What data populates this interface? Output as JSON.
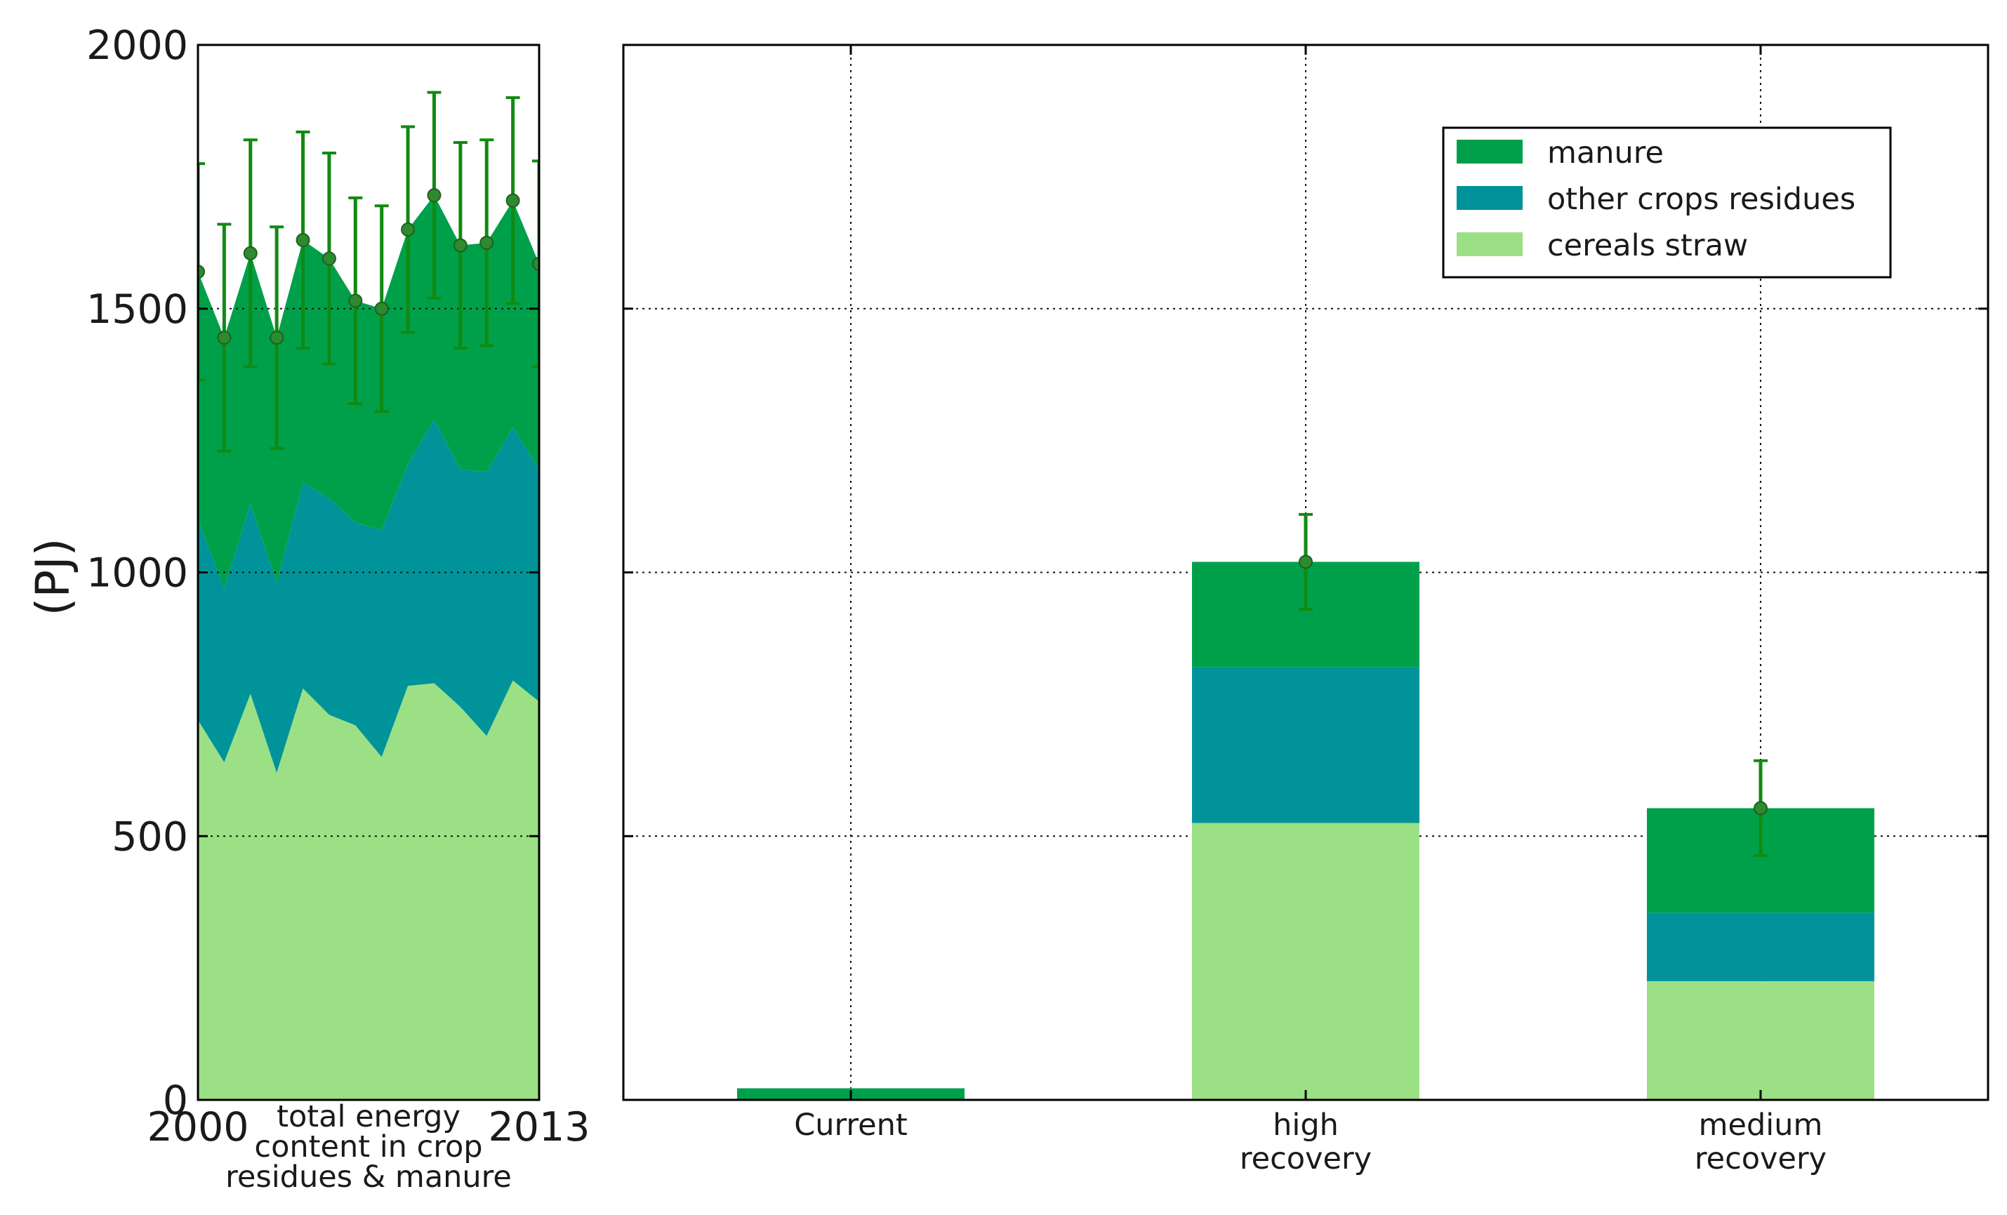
{
  "colors": {
    "manure": "#00a04b",
    "other_crops_residues": "#00939a",
    "cereals_straw": "#9be085",
    "errorbar": "#118a11",
    "marker": "#2e8a2e",
    "grid": "#111111"
  },
  "chart_data": [
    {
      "type": "area",
      "title": "",
      "xlabel": "total energy content in crop residues & manure",
      "xlabel_lines": [
        "total energy",
        "content in crop",
        "residues & manure"
      ],
      "ylabel": "(PJ)",
      "xlim": [
        2000,
        2013
      ],
      "ylim": [
        0,
        2000
      ],
      "x_tick_labels": [
        "2000",
        "2013"
      ],
      "y_tick_labels": [
        "0",
        "500",
        "1000",
        "1500",
        "2000"
      ],
      "x": [
        2000,
        2001,
        2002,
        2003,
        2004,
        2005,
        2006,
        2007,
        2008,
        2009,
        2010,
        2011,
        2012,
        2013
      ],
      "series": [
        {
          "name": "cereals straw",
          "values": [
            720,
            640,
            770,
            620,
            780,
            730,
            710,
            650,
            785,
            790,
            745,
            690,
            795,
            755
          ]
        },
        {
          "name": "other crops residues",
          "values": [
            380,
            330,
            360,
            360,
            390,
            410,
            385,
            430,
            420,
            500,
            450,
            500,
            480,
            440
          ]
        },
        {
          "name": "manure",
          "values": [
            470,
            475,
            475,
            465,
            460,
            455,
            420,
            420,
            445,
            425,
            425,
            435,
            430,
            390
          ]
        }
      ],
      "totals": [
        1570,
        1445,
        1605,
        1445,
        1630,
        1595,
        1515,
        1500,
        1650,
        1715,
        1620,
        1625,
        1705,
        1585
      ],
      "error": [
        205,
        215,
        215,
        210,
        205,
        200,
        195,
        195,
        195,
        195,
        195,
        195,
        195,
        195
      ]
    },
    {
      "type": "bar",
      "stacked": true,
      "title": "",
      "xlabel": "",
      "ylabel": "(PJ)",
      "ylim": [
        0,
        2000
      ],
      "grid": true,
      "legend_position": "top-right",
      "categories": [
        "Current",
        "high recovery",
        "medium recovery"
      ],
      "category_lines": [
        [
          "Current"
        ],
        [
          "high",
          "recovery"
        ],
        [
          "medium",
          "recovery"
        ]
      ],
      "series": [
        {
          "name": "cereals straw",
          "values": [
            0,
            525,
            225
          ]
        },
        {
          "name": "other crops residues",
          "values": [
            0,
            295,
            130
          ]
        },
        {
          "name": "manure",
          "values": [
            22,
            200,
            198
          ]
        }
      ],
      "totals": [
        null,
        1020,
        553
      ],
      "error": [
        null,
        90,
        90
      ],
      "legend": [
        "manure",
        "other crops residues",
        "cereals straw"
      ]
    }
  ]
}
